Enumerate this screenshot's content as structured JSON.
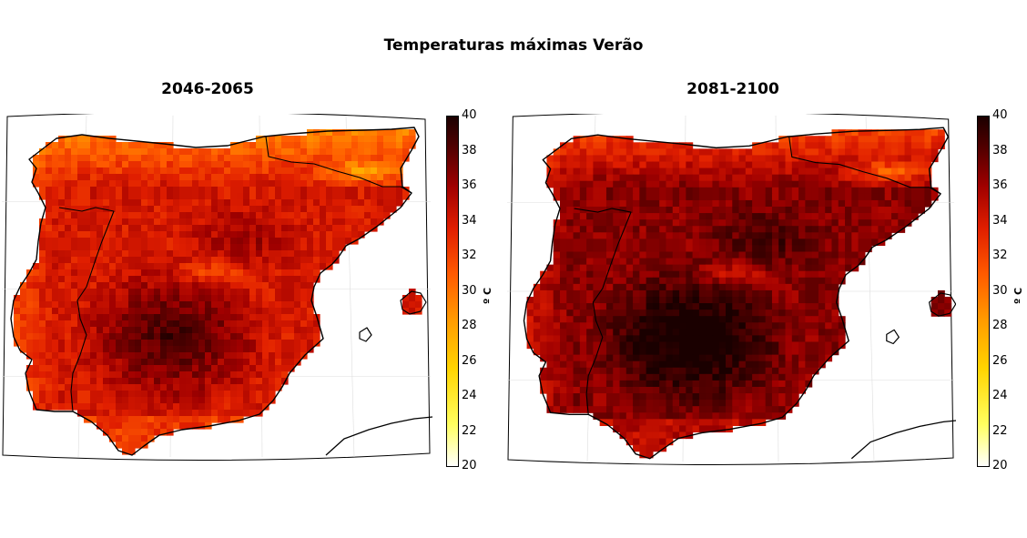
{
  "title": "Temperaturas máximas Verão",
  "panels": [
    {
      "title": "2046-2065",
      "period": "2046-2065"
    },
    {
      "title": "2081-2100",
      "period": "2081-2100"
    }
  ],
  "colorbar": {
    "min": 20,
    "max": 40,
    "ticks": [
      "40",
      "38",
      "36",
      "34",
      "32",
      "30",
      "28",
      "26",
      "24",
      "22",
      "20"
    ],
    "unit": "º C",
    "colors": [
      "#ffffff",
      "#ffff60",
      "#ffd400",
      "#ff9a00",
      "#ff5a00",
      "#e01e00",
      "#a00000",
      "#580000",
      "#1a0000"
    ]
  }
}
